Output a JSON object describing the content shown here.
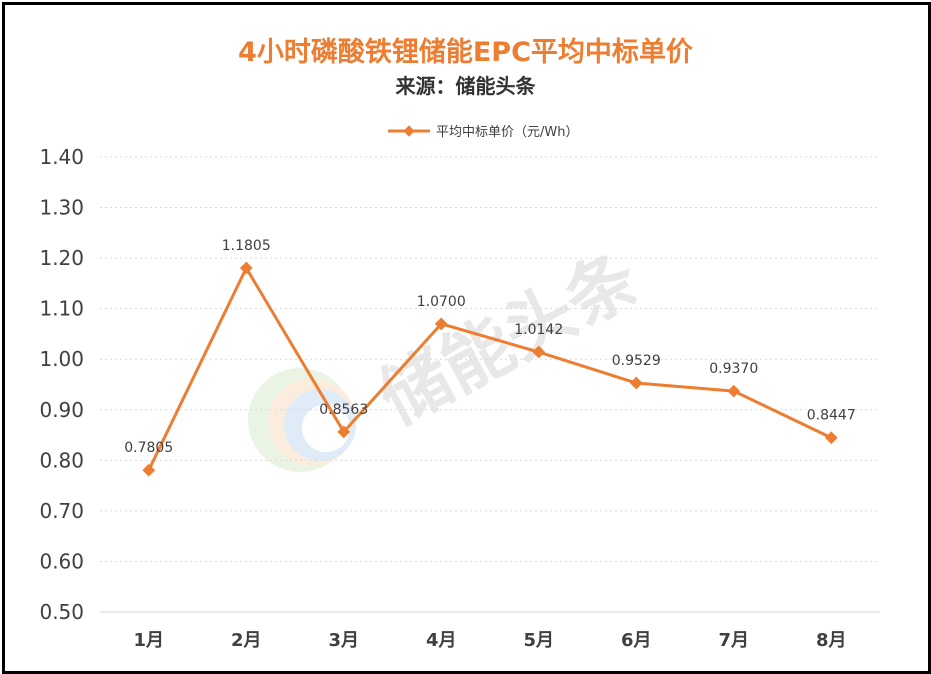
{
  "chart_data": {
    "type": "line",
    "title": "4小时磷酸铁锂储能EPC平均中标单价",
    "subtitle": "来源：储能头条",
    "categories": [
      "1月",
      "2月",
      "3月",
      "4月",
      "5月",
      "6月",
      "7月",
      "8月"
    ],
    "series": [
      {
        "name": "平均中标单价（元/Wh）",
        "values": [
          0.7805,
          1.1805,
          0.8563,
          1.07,
          1.0142,
          0.9529,
          0.937,
          0.8447
        ],
        "labels": [
          "0.7805",
          "1.1805",
          "0.8563",
          "1.0700",
          "1.0142",
          "0.9529",
          "0.9370",
          "0.8447"
        ],
        "color": "#ed7d31",
        "marker": "diamond"
      }
    ],
    "ylim": [
      0.5,
      1.4
    ],
    "yticks": [
      "0.50",
      "0.60",
      "0.70",
      "0.80",
      "0.90",
      "1.00",
      "1.10",
      "1.20",
      "1.30",
      "1.40"
    ],
    "xlabel": "",
    "ylabel": "",
    "grid": true,
    "legend_position": "top-center"
  },
  "watermark": "储能头条"
}
